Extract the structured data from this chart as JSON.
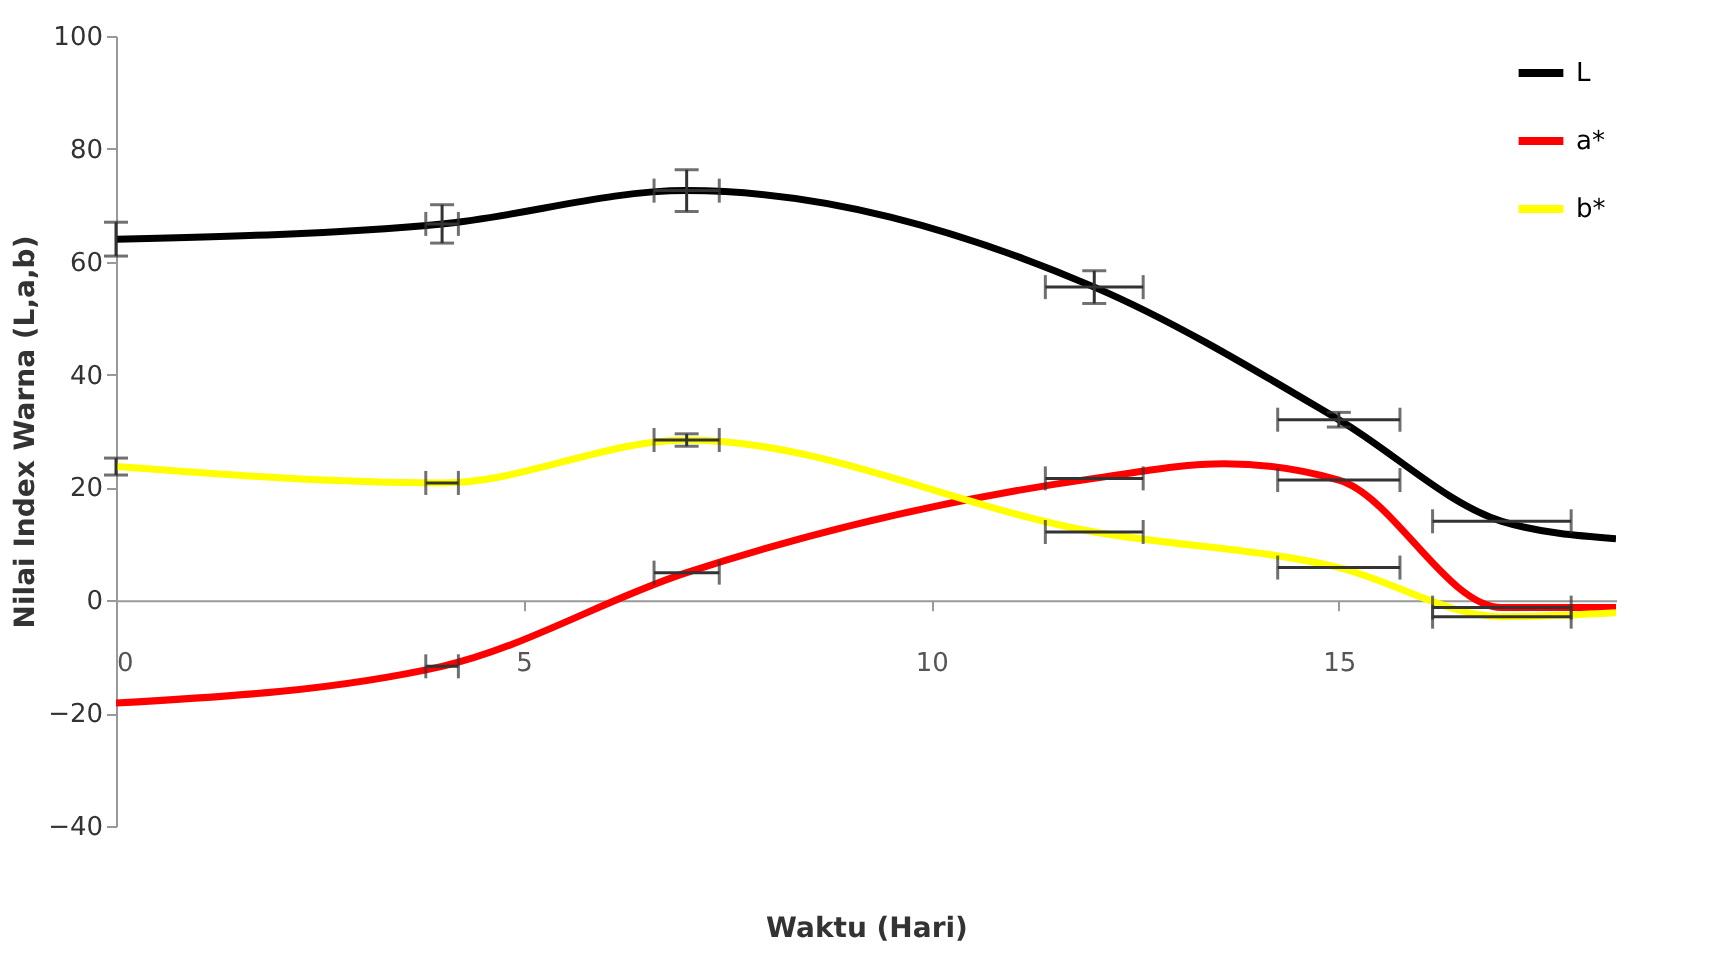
{
  "chart_data": {
    "type": "line",
    "xlabel": "Waktu (Hari)",
    "ylabel": "Nilai Index Warna (L,a,b)",
    "xlim": [
      0,
      18.4
    ],
    "xticks": [
      0,
      5,
      10,
      15
    ],
    "ylim": [
      -40,
      100
    ],
    "yticks": [
      -40,
      -20,
      0,
      20,
      40,
      60,
      80,
      100
    ],
    "grid": false,
    "legend": "top right",
    "line_style": "solid",
    "series": [
      {
        "name": "L",
        "color": "#000000",
        "x": [
          0,
          4,
          7,
          12,
          15,
          17,
          18.4
        ],
        "values": [
          64,
          66.7,
          72.6,
          55.5,
          32,
          14,
          10.9
        ],
        "errors": [
          3,
          3.4,
          3.7,
          2.9,
          1.3,
          null,
          null
        ],
        "xerrors": [
          null,
          0.2,
          0.4,
          0.6,
          0.75,
          0.85,
          null
        ]
      },
      {
        "name": "a*",
        "color": "#ff0000",
        "x": [
          0,
          4,
          7,
          12,
          13.6,
          15,
          17,
          18.4
        ],
        "values": [
          -18.2,
          -11.7,
          4.9,
          21.6,
          24.2,
          21.3,
          -1.3,
          -1.3
        ],
        "errors": [
          null,
          null,
          null,
          null,
          null,
          null,
          null,
          null
        ],
        "xerrors": [
          null,
          0.2,
          0.4,
          0.6,
          null,
          0.75,
          0.85,
          null
        ]
      },
      {
        "name": "b*",
        "color": "#ffff00",
        "x": [
          0,
          4,
          7,
          12,
          15,
          17,
          18.4
        ],
        "values": [
          23.7,
          20.8,
          28.4,
          12.1,
          5.8,
          -2.9,
          -2.2
        ],
        "errors": [
          1.5,
          null,
          1.1,
          null,
          null,
          null,
          null
        ],
        "xerrors": [
          null,
          0.2,
          0.4,
          0.6,
          0.75,
          0.85,
          null
        ]
      }
    ]
  }
}
